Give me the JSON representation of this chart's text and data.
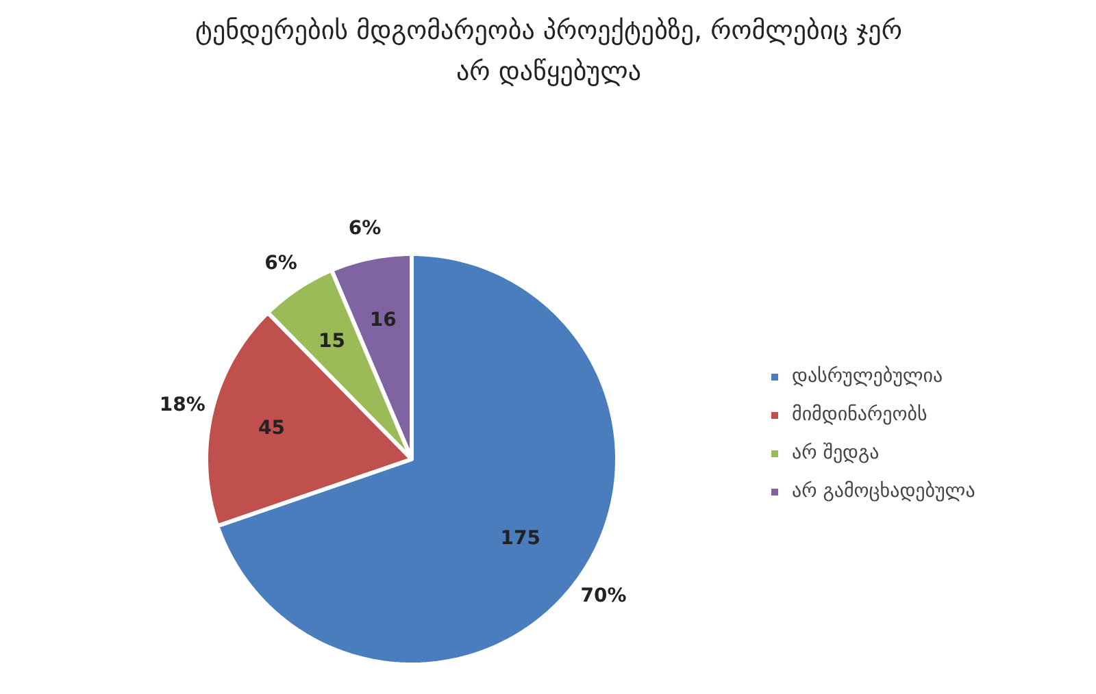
{
  "chart_data": {
    "type": "pie",
    "title": "ტენდერების მდგომარეობა პროექტებზე, რომლებიც ჯერ არ დაწყებულა",
    "categories": [
      "დასრულებულია",
      "მიმდინარეობს",
      "არ შედგა",
      "არ გამოცხადებულა"
    ],
    "values": [
      175,
      45,
      15,
      16
    ],
    "colors": [
      "#4a7dbd",
      "#c0504d",
      "#9bbb59",
      "#8064a2"
    ],
    "data_labels": true,
    "annotations": [
      "70%",
      "18%",
      "6%",
      "6%"
    ],
    "legend": "right"
  }
}
